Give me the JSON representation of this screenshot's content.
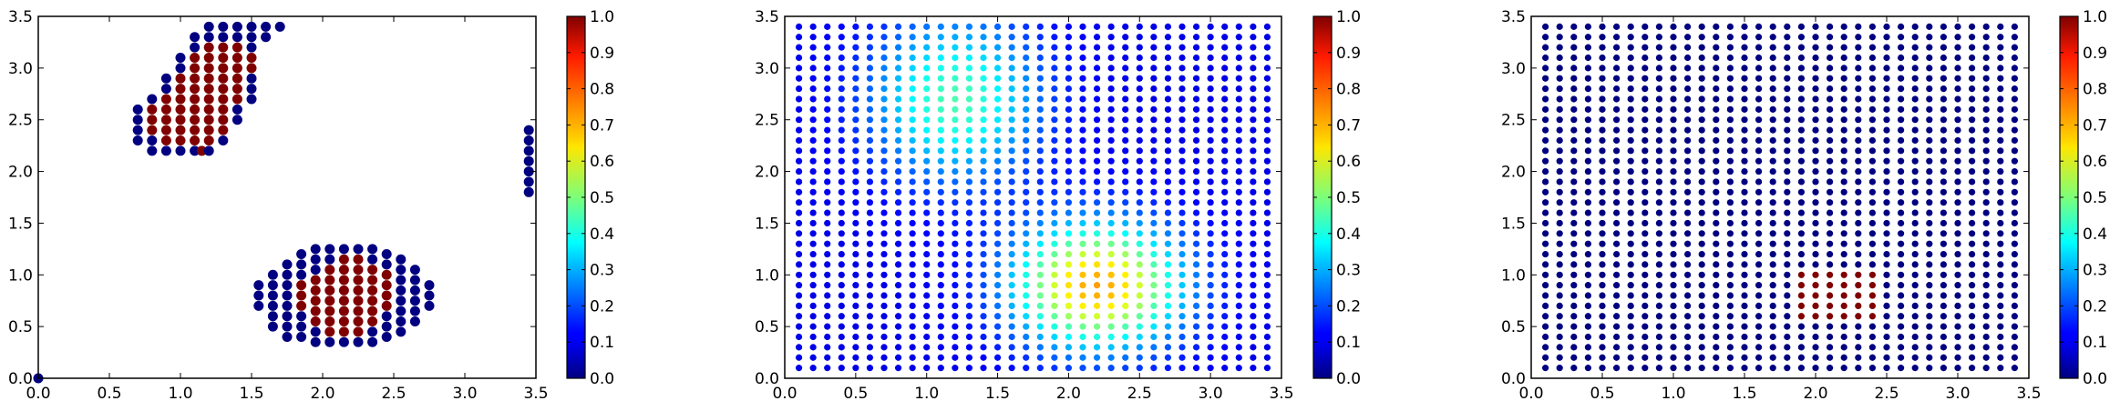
{
  "chart_data": [
    {
      "type": "scatter",
      "title": "",
      "xlabel": "",
      "ylabel": "",
      "xlim": [
        0,
        3.5
      ],
      "ylim": [
        0,
        3.5
      ],
      "xticks": [
        "0.0",
        "0.5",
        "1.0",
        "1.5",
        "2.0",
        "2.5",
        "3.0",
        "3.5"
      ],
      "yticks": [
        "0.0",
        "0.5",
        "1.0",
        "1.5",
        "2.0",
        "2.5",
        "3.0",
        "3.5"
      ],
      "grid": false,
      "colormap": "jet",
      "colorbar": {
        "range": [
          0,
          1
        ],
        "ticks": [
          "0.0",
          "0.1",
          "0.2",
          "0.3",
          "0.4",
          "0.5",
          "0.6",
          "0.7",
          "0.8",
          "0.9",
          "1.0"
        ]
      },
      "marker_size": "large",
      "points": [
        [
          0.7,
          2.3,
          0
        ],
        [
          0.7,
          2.4,
          0
        ],
        [
          0.7,
          2.5,
          0
        ],
        [
          0.7,
          2.6,
          0
        ],
        [
          0.8,
          2.2,
          0
        ],
        [
          0.8,
          2.3,
          0
        ],
        [
          0.8,
          2.4,
          1
        ],
        [
          0.8,
          2.5,
          1
        ],
        [
          0.8,
          2.6,
          1
        ],
        [
          0.8,
          2.7,
          0
        ],
        [
          0.9,
          2.2,
          0
        ],
        [
          0.9,
          2.3,
          1
        ],
        [
          0.9,
          2.4,
          1
        ],
        [
          0.9,
          2.5,
          1
        ],
        [
          0.9,
          2.6,
          1
        ],
        [
          0.9,
          2.7,
          1
        ],
        [
          0.9,
          2.8,
          0
        ],
        [
          0.9,
          2.9,
          0
        ],
        [
          1.0,
          2.2,
          0
        ],
        [
          1.0,
          2.3,
          1
        ],
        [
          1.0,
          2.4,
          1
        ],
        [
          1.0,
          2.5,
          1
        ],
        [
          1.0,
          2.6,
          1
        ],
        [
          1.0,
          2.7,
          1
        ],
        [
          1.0,
          2.8,
          1
        ],
        [
          1.0,
          2.9,
          1
        ],
        [
          1.0,
          3.0,
          0
        ],
        [
          1.0,
          3.1,
          0
        ],
        [
          1.1,
          2.2,
          0
        ],
        [
          1.1,
          2.3,
          1
        ],
        [
          1.1,
          2.4,
          1
        ],
        [
          1.1,
          2.5,
          1
        ],
        [
          1.1,
          2.6,
          1
        ],
        [
          1.1,
          2.7,
          1
        ],
        [
          1.1,
          2.8,
          1
        ],
        [
          1.1,
          2.9,
          1
        ],
        [
          1.1,
          3.0,
          1
        ],
        [
          1.1,
          3.1,
          1
        ],
        [
          1.1,
          3.2,
          0
        ],
        [
          1.1,
          3.3,
          0
        ],
        [
          1.15,
          2.2,
          1
        ],
        [
          1.2,
          2.2,
          0
        ],
        [
          1.2,
          2.3,
          1
        ],
        [
          1.2,
          2.4,
          1
        ],
        [
          1.2,
          2.5,
          1
        ],
        [
          1.2,
          2.6,
          1
        ],
        [
          1.2,
          2.7,
          1
        ],
        [
          1.2,
          2.8,
          1
        ],
        [
          1.2,
          2.9,
          1
        ],
        [
          1.2,
          3.0,
          1
        ],
        [
          1.2,
          3.1,
          1
        ],
        [
          1.2,
          3.2,
          1
        ],
        [
          1.2,
          3.3,
          0
        ],
        [
          1.2,
          3.4,
          0
        ],
        [
          1.3,
          2.3,
          0
        ],
        [
          1.3,
          2.4,
          1
        ],
        [
          1.3,
          2.5,
          1
        ],
        [
          1.3,
          2.6,
          1
        ],
        [
          1.3,
          2.7,
          1
        ],
        [
          1.3,
          2.8,
          1
        ],
        [
          1.3,
          2.9,
          1
        ],
        [
          1.3,
          3.0,
          1
        ],
        [
          1.3,
          3.1,
          1
        ],
        [
          1.3,
          3.2,
          1
        ],
        [
          1.3,
          3.3,
          0
        ],
        [
          1.3,
          3.4,
          0
        ],
        [
          1.4,
          2.5,
          0
        ],
        [
          1.4,
          2.6,
          0
        ],
        [
          1.4,
          2.7,
          1
        ],
        [
          1.4,
          2.8,
          1
        ],
        [
          1.4,
          2.9,
          1
        ],
        [
          1.4,
          3.0,
          1
        ],
        [
          1.4,
          3.1,
          1
        ],
        [
          1.4,
          3.2,
          1
        ],
        [
          1.4,
          3.3,
          0
        ],
        [
          1.4,
          3.4,
          0
        ],
        [
          1.5,
          2.7,
          0
        ],
        [
          1.5,
          2.8,
          0
        ],
        [
          1.5,
          2.9,
          0
        ],
        [
          1.5,
          3.0,
          1
        ],
        [
          1.5,
          3.1,
          1
        ],
        [
          1.5,
          3.2,
          0
        ],
        [
          1.5,
          3.3,
          0
        ],
        [
          1.5,
          3.4,
          0
        ],
        [
          1.6,
          3.3,
          0
        ],
        [
          1.6,
          3.4,
          0
        ],
        [
          1.7,
          3.4,
          0
        ],
        [
          3.45,
          1.8,
          0
        ],
        [
          3.45,
          1.9,
          0
        ],
        [
          3.45,
          2.0,
          0
        ],
        [
          3.45,
          2.1,
          0
        ],
        [
          3.45,
          2.2,
          0
        ],
        [
          3.45,
          2.3,
          0
        ],
        [
          3.45,
          2.4,
          0
        ],
        [
          1.55,
          0.7,
          0
        ],
        [
          1.55,
          0.8,
          0
        ],
        [
          1.55,
          0.9,
          0
        ],
        [
          1.65,
          0.5,
          0
        ],
        [
          1.65,
          0.6,
          0
        ],
        [
          1.65,
          0.7,
          0
        ],
        [
          1.65,
          0.8,
          0
        ],
        [
          1.65,
          0.9,
          0
        ],
        [
          1.65,
          1.0,
          0
        ],
        [
          1.75,
          0.4,
          0
        ],
        [
          1.75,
          0.5,
          0
        ],
        [
          1.75,
          0.6,
          0
        ],
        [
          1.75,
          0.7,
          0
        ],
        [
          1.75,
          0.8,
          0
        ],
        [
          1.75,
          0.9,
          0
        ],
        [
          1.75,
          1.0,
          0
        ],
        [
          1.75,
          1.1,
          0
        ],
        [
          1.85,
          0.4,
          0
        ],
        [
          1.85,
          0.5,
          0
        ],
        [
          1.85,
          0.6,
          0
        ],
        [
          1.85,
          0.7,
          1
        ],
        [
          1.85,
          0.8,
          1
        ],
        [
          1.85,
          0.9,
          1
        ],
        [
          1.85,
          1.0,
          0
        ],
        [
          1.85,
          1.1,
          0
        ],
        [
          1.85,
          1.2,
          0
        ],
        [
          1.95,
          0.35,
          0
        ],
        [
          1.95,
          0.45,
          0
        ],
        [
          1.95,
          0.55,
          1
        ],
        [
          1.95,
          0.65,
          1
        ],
        [
          1.95,
          0.75,
          1
        ],
        [
          1.95,
          0.85,
          1
        ],
        [
          1.95,
          0.95,
          1
        ],
        [
          1.95,
          1.05,
          0
        ],
        [
          1.95,
          1.15,
          0
        ],
        [
          1.95,
          1.25,
          0
        ],
        [
          2.05,
          0.35,
          0
        ],
        [
          2.05,
          0.45,
          1
        ],
        [
          2.05,
          0.55,
          1
        ],
        [
          2.05,
          0.65,
          1
        ],
        [
          2.05,
          0.75,
          1
        ],
        [
          2.05,
          0.85,
          1
        ],
        [
          2.05,
          0.95,
          1
        ],
        [
          2.05,
          1.05,
          1
        ],
        [
          2.05,
          1.15,
          0
        ],
        [
          2.05,
          1.25,
          0
        ],
        [
          2.15,
          0.35,
          0
        ],
        [
          2.15,
          0.45,
          1
        ],
        [
          2.15,
          0.55,
          1
        ],
        [
          2.15,
          0.65,
          1
        ],
        [
          2.15,
          0.75,
          1
        ],
        [
          2.15,
          0.85,
          1
        ],
        [
          2.15,
          0.95,
          1
        ],
        [
          2.15,
          1.05,
          1
        ],
        [
          2.15,
          1.15,
          1
        ],
        [
          2.15,
          1.25,
          0
        ],
        [
          2.25,
          0.35,
          0
        ],
        [
          2.25,
          0.45,
          1
        ],
        [
          2.25,
          0.55,
          1
        ],
        [
          2.25,
          0.65,
          1
        ],
        [
          2.25,
          0.75,
          1
        ],
        [
          2.25,
          0.85,
          1
        ],
        [
          2.25,
          0.95,
          1
        ],
        [
          2.25,
          1.05,
          1
        ],
        [
          2.25,
          1.15,
          1
        ],
        [
          2.25,
          1.25,
          0
        ],
        [
          2.35,
          0.35,
          0
        ],
        [
          2.35,
          0.45,
          0
        ],
        [
          2.35,
          0.55,
          1
        ],
        [
          2.35,
          0.65,
          1
        ],
        [
          2.35,
          0.75,
          1
        ],
        [
          2.35,
          0.85,
          1
        ],
        [
          2.35,
          0.95,
          1
        ],
        [
          2.35,
          1.05,
          1
        ],
        [
          2.35,
          1.15,
          0
        ],
        [
          2.35,
          1.25,
          0
        ],
        [
          2.45,
          0.4,
          0
        ],
        [
          2.45,
          0.5,
          0
        ],
        [
          2.45,
          0.6,
          0
        ],
        [
          2.45,
          0.7,
          1
        ],
        [
          2.45,
          0.8,
          1
        ],
        [
          2.45,
          0.9,
          1
        ],
        [
          2.45,
          1.0,
          1
        ],
        [
          2.45,
          1.1,
          0
        ],
        [
          2.45,
          1.2,
          0
        ],
        [
          2.55,
          0.45,
          0
        ],
        [
          2.55,
          0.55,
          0
        ],
        [
          2.55,
          0.65,
          0
        ],
        [
          2.55,
          0.75,
          0
        ],
        [
          2.55,
          0.85,
          0
        ],
        [
          2.55,
          0.95,
          0
        ],
        [
          2.55,
          1.05,
          0
        ],
        [
          2.55,
          1.15,
          0
        ],
        [
          2.65,
          0.55,
          0
        ],
        [
          2.65,
          0.65,
          0
        ],
        [
          2.65,
          0.75,
          0
        ],
        [
          2.65,
          0.85,
          0
        ],
        [
          2.65,
          0.95,
          0
        ],
        [
          2.65,
          1.05,
          0
        ],
        [
          2.75,
          0.7,
          0
        ],
        [
          2.75,
          0.8,
          0
        ],
        [
          2.75,
          0.9,
          0
        ],
        [
          0.0,
          0.0,
          0
        ]
      ]
    },
    {
      "type": "scatter",
      "title": "",
      "xlabel": "",
      "ylabel": "",
      "xlim": [
        0,
        3.5
      ],
      "ylim": [
        0,
        3.5
      ],
      "xticks": [
        "0.0",
        "0.5",
        "1.0",
        "1.5",
        "2.0",
        "2.5",
        "3.0",
        "3.5"
      ],
      "yticks": [
        "0.0",
        "0.5",
        "1.0",
        "1.5",
        "2.0",
        "2.5",
        "3.0",
        "3.5"
      ],
      "grid": false,
      "colormap": "jet",
      "colorbar": {
        "range": [
          0,
          1
        ],
        "ticks": [
          "0.0",
          "0.1",
          "0.2",
          "0.3",
          "0.4",
          "0.5",
          "0.6",
          "0.7",
          "0.8",
          "0.9",
          "1.0"
        ]
      },
      "grid_points": {
        "x_start": 0.1,
        "x_end": 3.4,
        "x_step": 0.1,
        "y_start": 0.1,
        "y_end": 3.4,
        "y_step": 0.1
      },
      "field": {
        "kind": "gaussian-sum",
        "components": [
          {
            "center": [
              2.2,
              0.9
            ],
            "amplitude": 0.62,
            "spread": [
              0.42,
              0.42
            ]
          },
          {
            "center": [
              1.2,
              2.7
            ],
            "amplitude": 0.35,
            "spread": [
              0.42,
              0.55
            ]
          }
        ],
        "base": 0.1
      }
    },
    {
      "type": "scatter",
      "title": "",
      "xlabel": "",
      "ylabel": "",
      "xlim": [
        0,
        3.5
      ],
      "ylim": [
        0,
        3.5
      ],
      "xticks": [
        "0.0",
        "0.5",
        "1.0",
        "1.5",
        "2.0",
        "2.5",
        "3.0",
        "3.5"
      ],
      "yticks": [
        "0.0",
        "0.5",
        "1.0",
        "1.5",
        "2.0",
        "2.5",
        "3.0",
        "3.5"
      ],
      "grid": false,
      "colormap": "jet",
      "colorbar": {
        "range": [
          0,
          1
        ],
        "ticks": [
          "0.0",
          "0.1",
          "0.2",
          "0.3",
          "0.4",
          "0.5",
          "0.6",
          "0.7",
          "0.8",
          "0.9",
          "1.0"
        ]
      },
      "grid_points": {
        "x_start": 0.1,
        "x_end": 3.4,
        "x_step": 0.1,
        "y_start": 0.1,
        "y_end": 3.4,
        "y_step": 0.1
      },
      "high_region": {
        "x": [
          1.9,
          2.4
        ],
        "y": [
          0.6,
          1.0
        ],
        "value": 1.0
      },
      "low_value": 0.0
    }
  ]
}
